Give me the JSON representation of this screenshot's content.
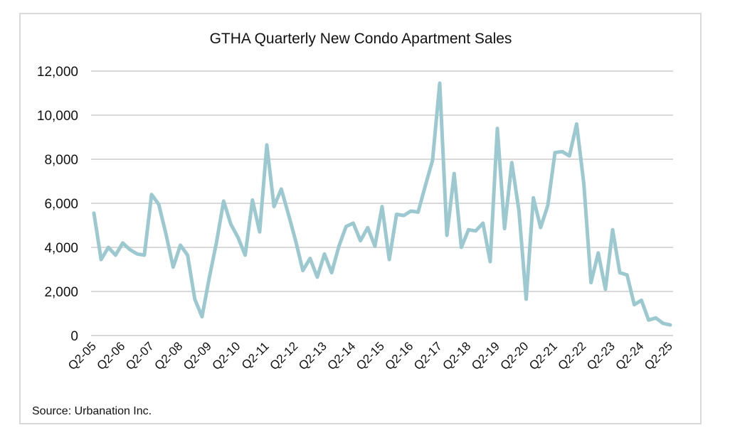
{
  "chart_data": {
    "type": "line",
    "title": "GTHA Quarterly New Condo Apartment Sales",
    "xlabel": "",
    "ylabel": "",
    "ylim": [
      0,
      12000
    ],
    "yticks": [
      0,
      2000,
      4000,
      6000,
      8000,
      10000,
      12000
    ],
    "ytick_labels": [
      "0",
      "2,000",
      "4,000",
      "6,000",
      "8,000",
      "10,000",
      "12,000"
    ],
    "grid": "horizontal",
    "legend": "none",
    "line_color": "#9cc8d0",
    "grid_color": "#d9d9d9",
    "x": [
      "Q2-05",
      "Q3-05",
      "Q4-05",
      "Q1-06",
      "Q2-06",
      "Q3-06",
      "Q4-06",
      "Q1-07",
      "Q2-07",
      "Q3-07",
      "Q4-07",
      "Q1-08",
      "Q2-08",
      "Q3-08",
      "Q4-08",
      "Q1-09",
      "Q2-09",
      "Q3-09",
      "Q4-09",
      "Q1-10",
      "Q2-10",
      "Q3-10",
      "Q4-10",
      "Q1-11",
      "Q2-11",
      "Q3-11",
      "Q4-11",
      "Q1-12",
      "Q2-12",
      "Q3-12",
      "Q4-12",
      "Q1-13",
      "Q2-13",
      "Q3-13",
      "Q4-13",
      "Q1-14",
      "Q2-14",
      "Q3-14",
      "Q4-14",
      "Q1-15",
      "Q2-15",
      "Q3-15",
      "Q4-15",
      "Q1-16",
      "Q2-16",
      "Q3-16",
      "Q4-16",
      "Q1-17",
      "Q2-17",
      "Q3-17",
      "Q4-17",
      "Q1-18",
      "Q2-18",
      "Q3-18",
      "Q4-18",
      "Q1-19",
      "Q2-19",
      "Q3-19",
      "Q4-19",
      "Q1-20",
      "Q2-20",
      "Q3-20",
      "Q4-20",
      "Q1-21",
      "Q2-21",
      "Q3-21",
      "Q4-21",
      "Q1-22",
      "Q2-22",
      "Q3-22",
      "Q4-22",
      "Q1-23",
      "Q2-23",
      "Q3-23",
      "Q4-23",
      "Q1-24",
      "Q2-24",
      "Q3-24",
      "Q4-24",
      "Q1-25",
      "Q2-25"
    ],
    "xtick_labels": [
      "Q2-05",
      "Q2-06",
      "Q2-07",
      "Q2-08",
      "Q2-09",
      "Q2-10",
      "Q2-11",
      "Q2-12",
      "Q2-13",
      "Q2-14",
      "Q2-15",
      "Q2-16",
      "Q2-17",
      "Q2-18",
      "Q2-19",
      "Q2-20",
      "Q2-21",
      "Q2-22",
      "Q2-23",
      "Q2-24",
      "Q2-25"
    ],
    "series": [
      {
        "name": "New Condo Apartment Sales",
        "values": [
          5550,
          3450,
          4000,
          3650,
          4200,
          3900,
          3700,
          3650,
          6400,
          5950,
          4600,
          3100,
          4100,
          3650,
          1650,
          850,
          2600,
          4200,
          6100,
          5050,
          4450,
          3650,
          6150,
          4700,
          8650,
          5850,
          6650,
          5500,
          4300,
          2950,
          3500,
          2650,
          3700,
          2850,
          4050,
          4950,
          5100,
          4300,
          4900,
          4050,
          5850,
          3450,
          5500,
          5450,
          5650,
          5600,
          6800,
          7950,
          11450,
          4550,
          7350,
          4000,
          4800,
          4750,
          5100,
          3350,
          9400,
          4850,
          7850,
          5650,
          1650,
          6250,
          4900,
          5900,
          8300,
          8350,
          8150,
          9600,
          6900,
          2400,
          3750,
          2100,
          4800,
          2850,
          2750,
          1400,
          1600,
          700,
          800,
          550,
          480
        ]
      }
    ],
    "source": "Source: Urbanation Inc."
  }
}
